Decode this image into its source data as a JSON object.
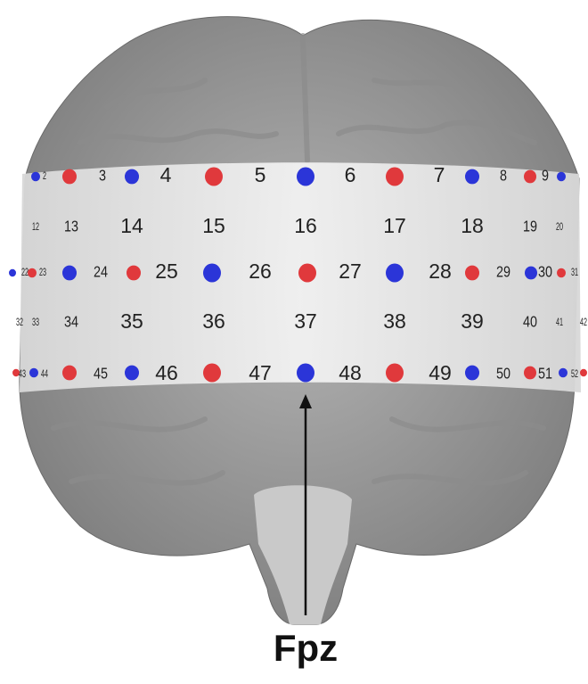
{
  "channel_rows": [
    [
      "2",
      "3",
      "4",
      "5",
      "6",
      "7",
      "8",
      "9"
    ],
    [
      "12",
      "13",
      "14",
      "15",
      "16",
      "17",
      "18",
      "19",
      "20"
    ],
    [
      "22",
      "23",
      "24",
      "25",
      "26",
      "27",
      "28",
      "29",
      "30",
      "31"
    ],
    [
      "32",
      "33",
      "34",
      "35",
      "36",
      "37",
      "38",
      "39",
      "40",
      "41",
      "42"
    ],
    [
      "43",
      "44",
      "45",
      "46",
      "47",
      "48",
      "49",
      "50",
      "51",
      "52"
    ]
  ],
  "landmark": "Fpz"
}
